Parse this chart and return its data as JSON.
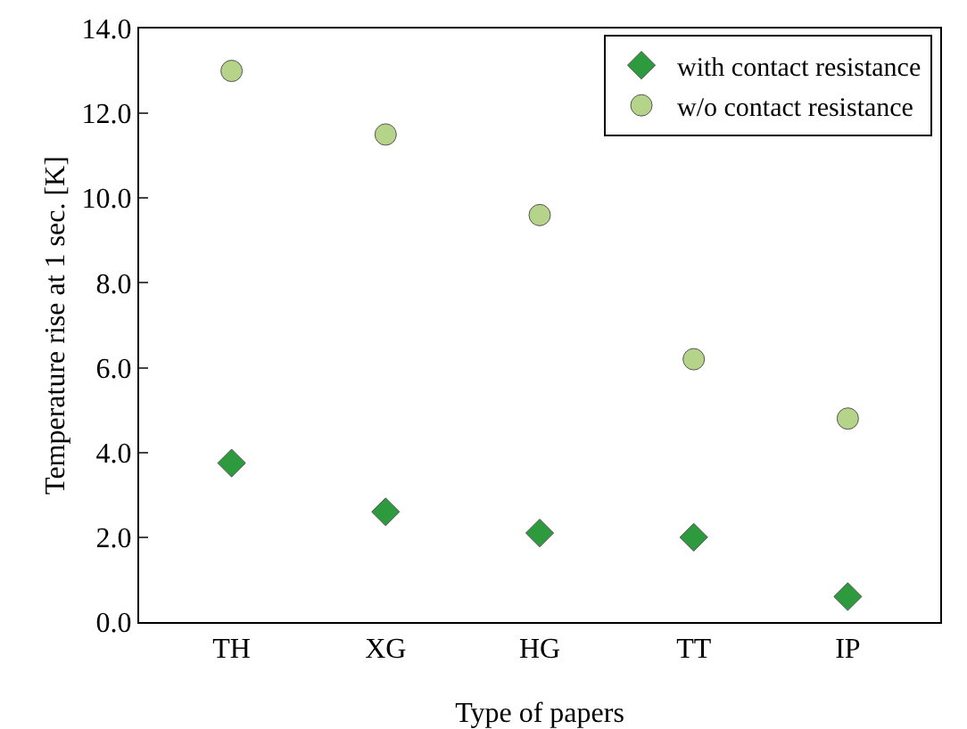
{
  "chart_data": {
    "type": "scatter",
    "xlabel": "Type of papers",
    "ylabel": "Temperature rise at 1 sec. [K]",
    "categories": [
      "TH",
      "XG",
      "HG",
      "TT",
      "IP"
    ],
    "series": [
      {
        "name": "with contact resistance",
        "color": "#2e9a3e",
        "marker": "diamond",
        "values": [
          3.75,
          2.6,
          2.1,
          2.0,
          0.6
        ]
      },
      {
        "name": "w/o contact resistance",
        "color": "#b5d48a",
        "marker": "circle",
        "values": [
          13.0,
          11.5,
          9.6,
          6.2,
          4.8
        ]
      }
    ],
    "ylim": [
      0,
      14
    ],
    "yticks": [
      {
        "value": 0,
        "label": "0.0"
      },
      {
        "value": 2,
        "label": "2.0"
      },
      {
        "value": 4,
        "label": "4.0"
      },
      {
        "value": 6,
        "label": "6.0"
      },
      {
        "value": 8,
        "label": "8.0"
      },
      {
        "value": 10,
        "label": "10.0"
      },
      {
        "value": 12,
        "label": "12.0"
      },
      {
        "value": 14,
        "label": "14.0"
      }
    ],
    "grid": false,
    "legend": "top right"
  }
}
